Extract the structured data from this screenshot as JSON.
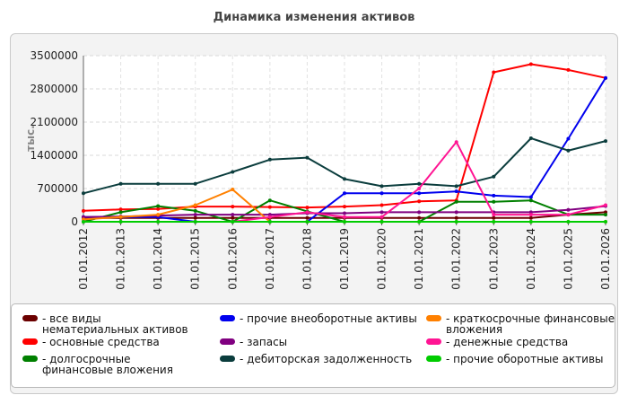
{
  "chart_data": {
    "type": "line",
    "title": "Динамика изменения активов",
    "ylabel": "тыс.",
    "xlabel": "",
    "ylim": [
      0,
      3500000
    ],
    "yticks": [
      "3500000",
      "2800000",
      "2100000",
      "1400000",
      "700000",
      "0"
    ],
    "categories": [
      "01.01.2012",
      "01.01.2013",
      "01.01.2014",
      "01.01.2015",
      "01.01.2016",
      "01.01.2017",
      "01.01.2018",
      "01.01.2019",
      "01.01.2020",
      "01.01.2021",
      "01.01.2022",
      "01.01.2023",
      "01.01.2024",
      "01.01.2025",
      "01.01.2026"
    ],
    "grid": true,
    "legend_position": "bottom",
    "series": [
      {
        "name": "все виды нематериальных активов",
        "color": "#6b0000",
        "values": [
          80000,
          80000,
          80000,
          80000,
          80000,
          80000,
          80000,
          80000,
          80000,
          80000,
          80000,
          80000,
          80000,
          150000,
          200000
        ]
      },
      {
        "name": "основные средства",
        "color": "#ff0000",
        "values": [
          230000,
          260000,
          270000,
          320000,
          320000,
          310000,
          300000,
          320000,
          350000,
          430000,
          450000,
          3150000,
          3320000,
          3200000,
          3030000
        ]
      },
      {
        "name": "долгосрочные финансовые вложения",
        "color": "#008000",
        "values": [
          0,
          200000,
          330000,
          230000,
          0,
          450000,
          220000,
          0,
          0,
          0,
          420000,
          420000,
          450000,
          150000,
          150000
        ]
      },
      {
        "name": "прочие внеоборотные активы",
        "color": "#0000ee",
        "values": [
          100000,
          100000,
          100000,
          0,
          0,
          0,
          0,
          600000,
          600000,
          600000,
          640000,
          550000,
          520000,
          1750000,
          3030000
        ]
      },
      {
        "name": "запасы",
        "color": "#800080",
        "values": [
          100000,
          110000,
          130000,
          150000,
          150000,
          150000,
          180000,
          180000,
          200000,
          200000,
          200000,
          200000,
          200000,
          250000,
          330000
        ]
      },
      {
        "name": "дебиторская задолженность",
        "color": "#0b3d3d",
        "values": [
          600000,
          800000,
          800000,
          800000,
          1050000,
          1310000,
          1350000,
          900000,
          750000,
          800000,
          750000,
          950000,
          1760000,
          1500000,
          1700000
        ]
      },
      {
        "name": "краткосрочные финансовые вложения",
        "color": "#ff8000",
        "values": [
          50000,
          100000,
          150000,
          350000,
          680000,
          0,
          0,
          0,
          0,
          0,
          0,
          0,
          0,
          0,
          0
        ]
      },
      {
        "name": "денежные средства",
        "color": "#ff1493",
        "values": [
          0,
          0,
          0,
          0,
          0,
          100000,
          200000,
          100000,
          100000,
          700000,
          1680000,
          150000,
          150000,
          150000,
          350000
        ]
      },
      {
        "name": "прочие оборотные активы",
        "color": "#00cc00",
        "values": [
          0,
          0,
          0,
          0,
          0,
          0,
          0,
          0,
          0,
          0,
          0,
          0,
          0,
          0,
          0
        ]
      }
    ]
  }
}
